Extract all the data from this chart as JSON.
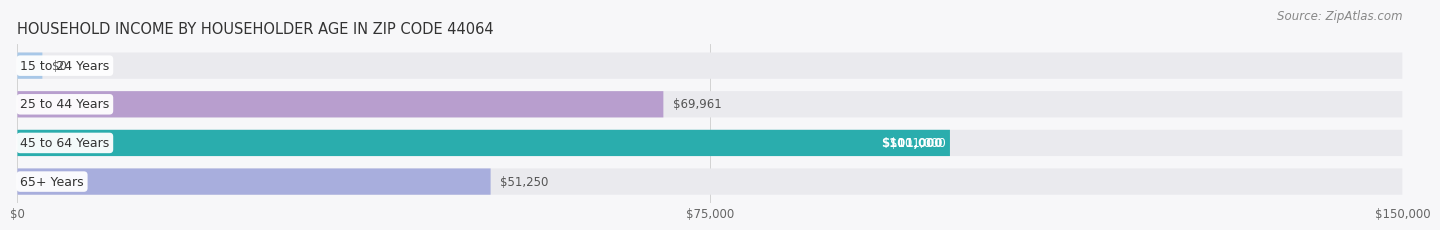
{
  "title": "HOUSEHOLD INCOME BY HOUSEHOLDER AGE IN ZIP CODE 44064",
  "source": "Source: ZipAtlas.com",
  "categories": [
    "15 to 24 Years",
    "25 to 44 Years",
    "45 to 64 Years",
    "65+ Years"
  ],
  "values": [
    0,
    69961,
    101000,
    51250
  ],
  "bar_colors": [
    "#a8c8e8",
    "#b89ece",
    "#2aadad",
    "#a8aedd"
  ],
  "bar_bg_color": "#eaeaee",
  "label_colors": [
    "#444444",
    "#444444",
    "#ffffff",
    "#444444"
  ],
  "value_labels": [
    "$0",
    "$69,961",
    "$101,000",
    "$51,250"
  ],
  "xmax": 150000,
  "xticks": [
    0,
    75000,
    150000
  ],
  "xtick_labels": [
    "$0",
    "$75,000",
    "$150,000"
  ],
  "background_color": "#f7f7f9",
  "title_fontsize": 10.5,
  "source_fontsize": 8.5,
  "bar_height": 0.68,
  "bar_gap": 1.0
}
